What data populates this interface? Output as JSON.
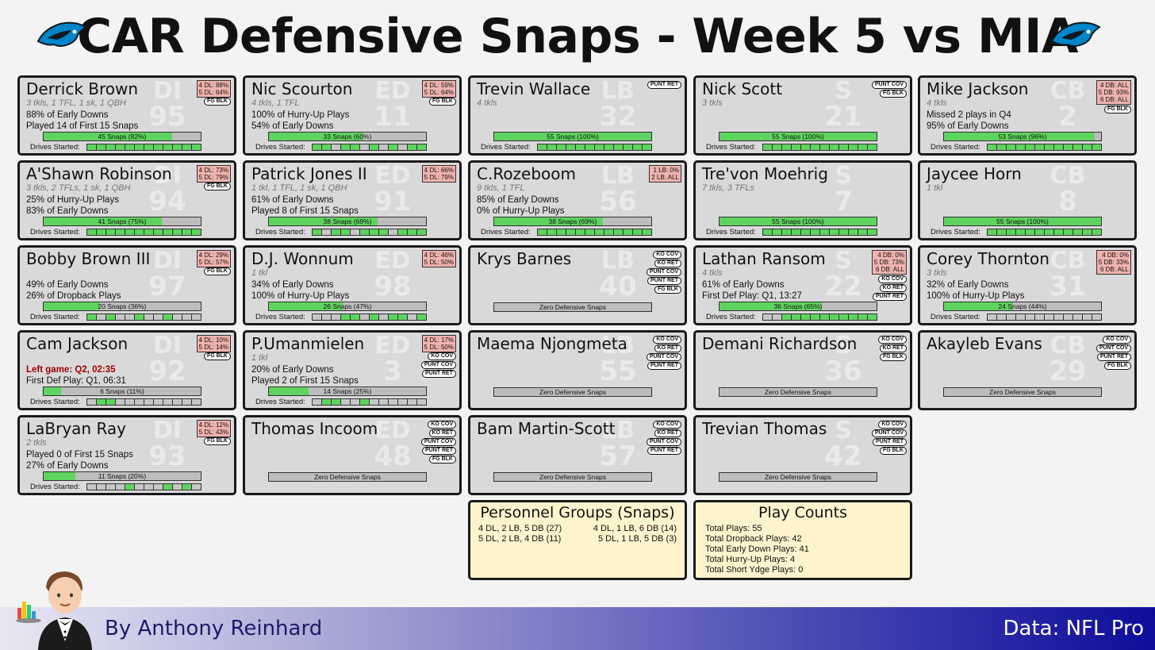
{
  "title": "CAR Defensive Snaps - Week 5 vs MIA",
  "footer": {
    "byline": "By Anthony Reinhard",
    "source": "Data: NFL Pro"
  },
  "colors": {
    "snap_fill": "#5fd35f",
    "pct_box": "#efb3ae",
    "card_bg": "#d9d9d9",
    "panel_bg": "#fdf3cc"
  },
  "players": [
    {
      "name": "Derrick Brown",
      "pos": "DI",
      "num": "95",
      "stats": "3 tkls, 1 TFL, 1 sk, 1 QBH",
      "line1": "88% of Early Downs",
      "line2": "Played 14 of First 15 Snaps",
      "snaps": "45 Snaps (82%)",
      "pct": 0.82,
      "pct_lines": [
        "4 DL: 88%",
        "5 DL: 64%"
      ],
      "tags": [
        "FG BLK"
      ],
      "drives": [
        1,
        1,
        1,
        1,
        1,
        1,
        1,
        1,
        1,
        1,
        1,
        1
      ],
      "zero": false
    },
    {
      "name": "Nic Scourton",
      "pos": "ED",
      "num": "11",
      "stats": "4 tkls, 1 TFL",
      "line1": "100% of Hurry-Up Plays",
      "line2": "54% of Early Downs",
      "snaps": "33 Snaps (60%)",
      "pct": 0.6,
      "pct_lines": [
        "4 DL: 59%",
        "5 DL: 64%"
      ],
      "tags": [
        "FG BLK"
      ],
      "drives": [
        1,
        1,
        0,
        1,
        1,
        0,
        1,
        0,
        1,
        0,
        1,
        1
      ],
      "zero": false
    },
    {
      "name": "Trevin Wallace",
      "pos": "LB",
      "num": "32",
      "stats": "4 tkls",
      "line1": "",
      "line2": "",
      "snaps": "55 Snaps (100%)",
      "pct": 1.0,
      "pct_lines": [],
      "tags": [
        "PUNT RET"
      ],
      "drives": [
        1,
        1,
        1,
        1,
        1,
        1,
        1,
        1,
        1,
        1,
        1,
        1
      ],
      "zero": false
    },
    {
      "name": "Nick Scott",
      "pos": "S",
      "num": "21",
      "stats": "3 tkls",
      "line1": "",
      "line2": "",
      "snaps": "55 Snaps (100%)",
      "pct": 1.0,
      "pct_lines": [],
      "tags": [
        "PUNT COV",
        "FG BLK"
      ],
      "drives": [
        1,
        1,
        1,
        1,
        1,
        1,
        1,
        1,
        1,
        1,
        1,
        1
      ],
      "zero": false
    },
    {
      "name": "Mike Jackson",
      "pos": "CB",
      "num": "2",
      "stats": "4 tkls",
      "line1": "Missed 2 plays in Q4",
      "line2": "95% of Early Downs",
      "snaps": "53 Snaps (96%)",
      "pct": 0.96,
      "pct_lines": [
        "4 DB: ALL",
        "5 DB: 93%",
        "6 DB: ALL"
      ],
      "tags": [
        "FG BLK"
      ],
      "drives": [
        1,
        1,
        1,
        1,
        1,
        1,
        1,
        1,
        1,
        1,
        1,
        1
      ],
      "zero": false
    },
    {
      "name": "A'Shawn Robinson",
      "pos": "DI",
      "num": "94",
      "stats": "3 tkls, 2 TFLs, 1 sk, 1 QBH",
      "line1": "25% of Hurry-Up Plays",
      "line2": "83% of Early Downs",
      "snaps": "41 Snaps (75%)",
      "pct": 0.75,
      "pct_lines": [
        "4 DL: 73%",
        "5 DL: 79%"
      ],
      "tags": [
        "FG BLK"
      ],
      "drives": [
        1,
        1,
        1,
        1,
        1,
        1,
        1,
        1,
        1,
        1,
        1,
        1
      ],
      "zero": false
    },
    {
      "name": "Patrick Jones II",
      "pos": "ED",
      "num": "91",
      "stats": "1 tkl, 1 TFL, 1 sk, 1 QBH",
      "line1": "61% of Early Downs",
      "line2": "Played 8 of First 15 Snaps",
      "snaps": "38 Snaps (69%)",
      "pct": 0.69,
      "pct_lines": [
        "4 DL: 66%",
        "5 DL: 79%"
      ],
      "tags": [],
      "drives": [
        1,
        0,
        1,
        1,
        0,
        1,
        1,
        1,
        0,
        1,
        1,
        1
      ],
      "zero": false
    },
    {
      "name": "C.Rozeboom",
      "pos": "LB",
      "num": "56",
      "stats": "9 tkls, 1 TFL",
      "line1": "85% of Early Downs",
      "line2": "0% of Hurry-Up Plays",
      "snaps": "38 Snaps (69%)",
      "pct": 0.69,
      "pct_lines": [
        "1 LB: 0%",
        "2 LB: ALL"
      ],
      "tags": [],
      "drives": [
        1,
        1,
        1,
        1,
        1,
        1,
        1,
        1,
        1,
        1,
        1,
        1
      ],
      "zero": false
    },
    {
      "name": "Tre'von Moehrig",
      "pos": "S",
      "num": "7",
      "stats": "7 tkls, 3 TFLs",
      "line1": "",
      "line2": "",
      "snaps": "55 Snaps (100%)",
      "pct": 1.0,
      "pct_lines": [],
      "tags": [],
      "drives": [
        1,
        1,
        1,
        1,
        1,
        1,
        1,
        1,
        1,
        1,
        1,
        1
      ],
      "zero": false
    },
    {
      "name": "Jaycee Horn",
      "pos": "CB",
      "num": "8",
      "stats": "1 tkl",
      "line1": "",
      "line2": "",
      "snaps": "55 Snaps (100%)",
      "pct": 1.0,
      "pct_lines": [],
      "tags": [],
      "drives": [
        1,
        1,
        1,
        1,
        1,
        1,
        1,
        1,
        1,
        1,
        1,
        1
      ],
      "zero": false
    },
    {
      "name": "Bobby Brown III",
      "pos": "DI",
      "num": "97",
      "stats": "",
      "line1": "49% of Early Downs",
      "line2": "26% of Dropback Plays",
      "snaps": "20 Snaps (36%)",
      "pct": 0.36,
      "pct_lines": [
        "4 DL: 29%",
        "5 DL: 57%"
      ],
      "tags": [
        "FG BLK"
      ],
      "drives": [
        1,
        0,
        1,
        0,
        0,
        1,
        0,
        0,
        1,
        0,
        0,
        0
      ],
      "zero": false
    },
    {
      "name": "D.J. Wonnum",
      "pos": "ED",
      "num": "98",
      "stats": "1 tkl",
      "line1": "34% of Early Downs",
      "line2": "100% of Hurry-Up Plays",
      "snaps": "26 Snaps (47%)",
      "pct": 0.47,
      "pct_lines": [
        "4 DL: 46%",
        "5 DL: 50%"
      ],
      "tags": [],
      "drives": [
        0,
        0,
        0,
        1,
        1,
        0,
        1,
        0,
        1,
        1,
        0,
        1
      ],
      "zero": false
    },
    {
      "name": "Krys Barnes",
      "pos": "LB",
      "num": "40",
      "stats": "",
      "line1": "",
      "line2": "",
      "snaps": "Zero Defensive Snaps",
      "pct": 0,
      "pct_lines": [],
      "tags": [
        "KO COV",
        "KO RET",
        "PUNT COV",
        "PUNT RET",
        "FG BLK"
      ],
      "drives": [],
      "zero": true
    },
    {
      "name": "Lathan Ransom",
      "pos": "S",
      "num": "22",
      "stats": "4 tkls",
      "line1": "61% of Early Downs",
      "line2": "First Def Play: Q1, 13:27",
      "snaps": "36 Snaps (65%)",
      "pct": 0.65,
      "pct_lines": [
        "4 DB: 0%",
        "5 DB: 73%",
        "6 DB: ALL"
      ],
      "tags": [
        "KO COV",
        "KO RET",
        "PUNT RET"
      ],
      "drives": [
        0,
        0,
        1,
        1,
        1,
        1,
        1,
        1,
        1,
        1,
        1,
        1
      ],
      "zero": false
    },
    {
      "name": "Corey Thornton",
      "pos": "CB",
      "num": "31",
      "stats": "3 tkls",
      "line1": "32% of Early Downs",
      "line2": "100% of Hurry-Up Plays",
      "snaps": "24 Snaps (44%)",
      "pct": 0.44,
      "pct_lines": [
        "4 DB: 0%",
        "5 DB: 33%",
        "6 DB: ALL"
      ],
      "tags": [],
      "drives": [
        0,
        0,
        0,
        0,
        0,
        0,
        0,
        0,
        0,
        0,
        0,
        0
      ],
      "zero": false
    },
    {
      "name": "Cam Jackson",
      "pos": "DI",
      "num": "92",
      "stats": "",
      "line1": "Left game: Q2, 02:35",
      "line1_red": true,
      "line2": "First Def Play: Q1, 06:31",
      "snaps": "6 Snaps (11%)",
      "pct": 0.11,
      "pct_lines": [
        "4 DL: 10%",
        "5 DL: 14%"
      ],
      "tags": [
        "FG BLK"
      ],
      "drives": [
        0,
        1,
        1,
        0,
        0,
        0,
        0,
        0,
        0,
        0,
        0,
        0
      ],
      "zero": false
    },
    {
      "name": "P.Umanmielen",
      "pos": "ED",
      "num": "3",
      "stats": "1 tkl",
      "line1": "20% of Early Downs",
      "line2": "Played 2 of First 15 Snaps",
      "snaps": "14 Snaps (25%)",
      "pct": 0.25,
      "pct_lines": [
        "4 DL: 17%",
        "5 DL: 50%"
      ],
      "tags": [
        "KO COV",
        "PUNT COV",
        "PUNT RET"
      ],
      "drives": [
        0,
        1,
        1,
        0,
        0,
        1,
        0,
        0,
        0,
        0,
        0,
        0
      ],
      "zero": false
    },
    {
      "name": "Maema Njongmeta",
      "pos": "LB",
      "num": "55",
      "stats": "",
      "line1": "",
      "line2": "",
      "snaps": "Zero Defensive Snaps",
      "pct": 0,
      "pct_lines": [],
      "tags": [
        "KO COV",
        "KO RET",
        "PUNT COV",
        "PUNT RET"
      ],
      "drives": [],
      "zero": true
    },
    {
      "name": "Demani Richardson",
      "pos": "S",
      "num": "36",
      "stats": "",
      "line1": "",
      "line2": "",
      "snaps": "Zero Defensive Snaps",
      "pct": 0,
      "pct_lines": [],
      "tags": [
        "KO COV",
        "KO RET",
        "FG BLK"
      ],
      "drives": [],
      "zero": true
    },
    {
      "name": "Akayleb Evans",
      "pos": "CB",
      "num": "29",
      "stats": "",
      "line1": "",
      "line2": "",
      "snaps": "Zero Defensive Snaps",
      "pct": 0,
      "pct_lines": [],
      "tags": [
        "KO COV",
        "PUNT COV",
        "PUNT RET",
        "FG BLK"
      ],
      "drives": [],
      "zero": true
    },
    {
      "name": "LaBryan Ray",
      "pos": "DI",
      "num": "93",
      "stats": "2 tkls",
      "line1": "Played 0 of First 15 Snaps",
      "line2": "27% of Early Downs",
      "snaps": "11 Snaps (20%)",
      "pct": 0.2,
      "pct_lines": [
        "4 DL: 12%",
        "5 DL: 43%"
      ],
      "tags": [
        "FG BLK"
      ],
      "drives": [
        0,
        0,
        0,
        0,
        1,
        0,
        0,
        0,
        1,
        0,
        1,
        0
      ],
      "zero": false
    },
    {
      "name": "Thomas Incoom",
      "pos": "ED",
      "num": "48",
      "stats": "",
      "line1": "",
      "line2": "",
      "snaps": "Zero Defensive Snaps",
      "pct": 0,
      "pct_lines": [],
      "tags": [
        "KO COV",
        "KO RET",
        "PUNT COV",
        "PUNT RET",
        "FG BLK"
      ],
      "drives": [],
      "zero": true
    },
    {
      "name": "Bam Martin-Scott",
      "pos": "LB",
      "num": "57",
      "stats": "",
      "line1": "",
      "line2": "",
      "snaps": "Zero Defensive Snaps",
      "pct": 0,
      "pct_lines": [],
      "tags": [
        "KO COV",
        "KO RET",
        "PUNT COV",
        "PUNT RET"
      ],
      "drives": [],
      "zero": true
    },
    {
      "name": "Trevian Thomas",
      "pos": "S",
      "num": "42",
      "stats": "",
      "line1": "",
      "line2": "",
      "snaps": "Zero Defensive Snaps",
      "pct": 0,
      "pct_lines": [],
      "tags": [
        "KO COV",
        "PUNT COV",
        "PUNT RET",
        "FG BLK"
      ],
      "drives": [],
      "zero": true
    }
  ],
  "drives_label": "Drives Started:",
  "personnel": {
    "title": "Personnel Groups (Snaps)",
    "groups": [
      "4 DL, 2 LB, 5 DB (27)",
      "4 DL, 1 LB, 6 DB (14)",
      "5 DL, 2 LB, 4 DB (11)",
      "5 DL, 1 LB, 5 DB (3)"
    ]
  },
  "play_counts": {
    "title": "Play Counts",
    "lines": [
      "Total Plays: 55",
      "Total Dropback Plays: 42",
      "Total Early Down Plays: 41",
      "Total Hurry-Up Plays: 4",
      "Total Short Ydge Plays: 0"
    ]
  }
}
